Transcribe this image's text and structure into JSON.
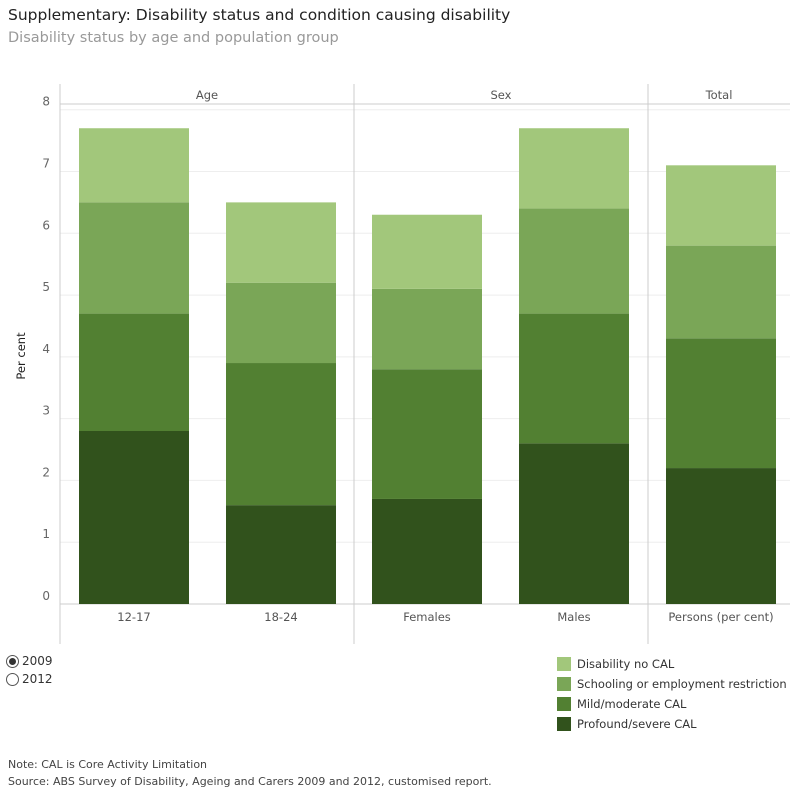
{
  "title": "Supplementary: Disability status and condition causing disability",
  "subtitle": "Disability status by age and population group",
  "chart_data": {
    "type": "bar",
    "stacked": true,
    "ylabel": "Per cent",
    "ylim": [
      0,
      8
    ],
    "yticks": [
      "0",
      "1",
      "2",
      "3",
      "4",
      "5",
      "6",
      "7",
      "8"
    ],
    "grid": true,
    "panels": [
      {
        "label": "Age",
        "categories": [
          "12-17",
          "18-24"
        ]
      },
      {
        "label": "Sex",
        "categories": [
          "Females",
          "Males"
        ]
      },
      {
        "label": "Total",
        "categories": [
          "Persons (per cent)"
        ]
      }
    ],
    "categories": [
      "12-17",
      "18-24",
      "Females",
      "Males",
      "Persons (per cent)"
    ],
    "series": [
      {
        "name": "Profound/severe CAL",
        "color": "#31521c",
        "values": [
          2.8,
          1.6,
          1.7,
          2.6,
          2.2
        ]
      },
      {
        "name": "Mild/moderate CAL",
        "color": "#528032",
        "values": [
          1.9,
          2.3,
          2.1,
          2.1,
          2.1
        ]
      },
      {
        "name": "Schooling or employment restriction",
        "color": "#7aa657",
        "values": [
          1.8,
          1.3,
          1.3,
          1.7,
          1.5
        ]
      },
      {
        "name": "Disability no CAL",
        "color": "#a2c77b",
        "values": [
          1.2,
          1.3,
          1.2,
          1.3,
          1.3
        ]
      }
    ],
    "legend_position": "bottom-right",
    "legend_order": [
      3,
      2,
      1,
      0
    ]
  },
  "year_options": [
    {
      "label": "2009",
      "selected": true
    },
    {
      "label": "2012",
      "selected": false
    }
  ],
  "note": "Note: CAL is Core Activity Limitation",
  "source": "Source: ABS Survey of Disability, Ageing and Carers 2009 and 2012, customised report."
}
